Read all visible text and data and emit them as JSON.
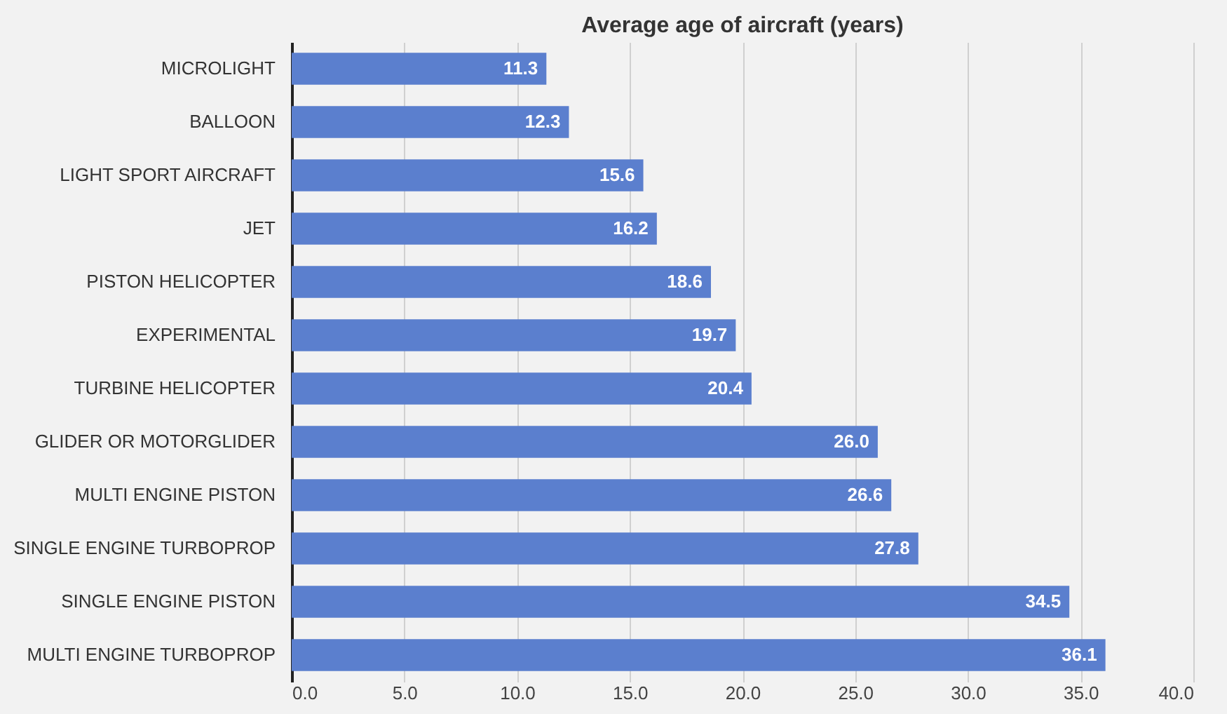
{
  "chart_data": {
    "type": "bar",
    "orientation": "horizontal",
    "title": "Average age of aircraft (years)",
    "categories": [
      "MICROLIGHT",
      "BALLOON",
      "LIGHT SPORT AIRCRAFT",
      "JET",
      "PISTON HELICOPTER",
      "EXPERIMENTAL",
      "TURBINE HELICOPTER",
      "GLIDER OR MOTORGLIDER",
      "MULTI ENGINE PISTON",
      "SINGLE ENGINE TURBOPROP",
      "SINGLE ENGINE PISTON",
      "MULTI ENGINE TURBOPROP"
    ],
    "values": [
      11.3,
      12.3,
      15.6,
      16.2,
      18.6,
      19.7,
      20.4,
      26.0,
      26.6,
      27.8,
      34.5,
      36.1
    ],
    "value_labels": [
      "11.3",
      "12.3",
      "15.6",
      "16.2",
      "18.6",
      "19.7",
      "20.4",
      "26.0",
      "26.6",
      "27.8",
      "34.5",
      "36.1"
    ],
    "color": "#5b7fce",
    "xlim": [
      0,
      40
    ],
    "xticks": [
      {
        "value": 0,
        "label": "0.0"
      },
      {
        "value": 5,
        "label": "5.0"
      },
      {
        "value": 10,
        "label": "10.0"
      },
      {
        "value": 15,
        "label": "15.0"
      },
      {
        "value": 20,
        "label": "20.0"
      },
      {
        "value": 25,
        "label": "25.0"
      },
      {
        "value": 30,
        "label": "30.0"
      },
      {
        "value": 35,
        "label": "35.0"
      },
      {
        "value": 40,
        "label": "40.0"
      }
    ],
    "grid": "x"
  }
}
